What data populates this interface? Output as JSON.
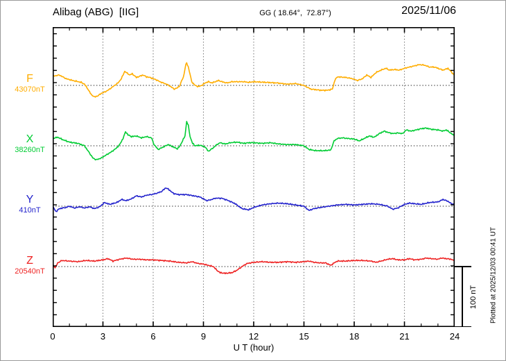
{
  "header": {
    "station": "Alibag (ABG)  [IIG]",
    "coords": "GG ( 18.64°,  72.87°)",
    "date": "2025/11/06"
  },
  "side": {
    "scale_bar_label": "100 nT",
    "plotted_at": "Plotted at 2025/12/03 00:41 UT"
  },
  "chart_data": {
    "type": "line",
    "x_label": "U T (hour)",
    "x_range": [
      0,
      24
    ],
    "x_major_ticks": [
      0,
      3,
      6,
      9,
      12,
      15,
      18,
      21,
      24
    ],
    "x_minor_tick_step_hours": 1,
    "scale_bar_nT": 100,
    "grid": "dotted vertical lines every 3 h; dotted horizontal baseline per trace",
    "y_values_are_offsets_nT_from_baseline": true,
    "series": [
      {
        "name": "F",
        "baseline_label": "43070nT",
        "baseline_nT": 43070,
        "color": "#FFAD00",
        "x": [
          0,
          0.4,
          0.8,
          1.2,
          1.7,
          1.9,
          2.1,
          2.3,
          2.5,
          2.7,
          2.9,
          3.1,
          3.3,
          3.5,
          3.7,
          3.9,
          4.1,
          4.3,
          4.45,
          4.6,
          4.75,
          5,
          5.2,
          5.4,
          5.6,
          5.8,
          6,
          6.2,
          6.4,
          6.6,
          6.8,
          7.05,
          7.25,
          7.45,
          7.6,
          7.7,
          7.8,
          7.95,
          8,
          8.1,
          8.2,
          8.3,
          8.5,
          8.7,
          8.9,
          9.1,
          9.3,
          9.5,
          9.7,
          9.9,
          10.1,
          10.4,
          10.7,
          11,
          11.4,
          11.7,
          12,
          12.7,
          13.4,
          14,
          14.5,
          15,
          15.4,
          16,
          16.4,
          16.7,
          16.85,
          17,
          17.5,
          17.9,
          18.2,
          18.5,
          18.75,
          19,
          19.3,
          19.6,
          19.9,
          20.1,
          20.4,
          20.7,
          21,
          21.3,
          21.6,
          21.9,
          22.2,
          22.5,
          22.8,
          23,
          23.3,
          23.6,
          23.8,
          24
        ],
        "offset_nT": [
          15,
          17,
          11,
          8,
          5,
          2,
          -6,
          -15,
          -19,
          -17,
          -13,
          -11,
          -8,
          -4,
          0,
          4,
          11,
          23,
          20,
          17,
          19,
          13,
          15,
          17,
          14,
          13,
          11,
          9,
          6,
          4,
          2,
          -2,
          -6,
          -4,
          0,
          8,
          13,
          34,
          37,
          30,
          18,
          6,
          0,
          -2,
          0,
          4,
          6,
          4,
          6,
          8,
          6,
          4,
          6,
          6,
          6,
          5,
          6,
          5,
          4,
          2,
          3,
          0,
          -6,
          -8,
          -8,
          -6,
          9,
          14,
          13,
          11,
          8,
          11,
          17,
          13,
          21,
          25,
          28,
          25,
          26,
          25,
          28,
          30,
          32,
          34,
          33,
          30,
          30,
          28,
          25,
          28,
          22,
          16
        ]
      },
      {
        "name": "X",
        "baseline_label": "38260nT",
        "baseline_nT": 38260,
        "color": "#00CC33",
        "x": [
          0,
          0.3,
          0.6,
          1,
          1.5,
          1.9,
          2.1,
          2.4,
          2.6,
          2.9,
          3.2,
          3.5,
          3.8,
          4,
          4.2,
          4.35,
          4.5,
          4.7,
          5,
          5.3,
          5.6,
          5.9,
          6.05,
          6.3,
          6.6,
          6.9,
          7.2,
          7.45,
          7.6,
          7.75,
          7.9,
          8,
          8.1,
          8.2,
          8.35,
          8.5,
          8.8,
          9.1,
          9.3,
          9.6,
          9.8,
          10,
          10.3,
          10.6,
          11,
          11.4,
          11.7,
          12,
          12.5,
          13,
          13.5,
          14,
          14.5,
          15,
          15.3,
          15.7,
          16.2,
          16.6,
          16.8,
          17,
          17.3,
          17.6,
          18,
          18.3,
          18.6,
          18.9,
          19.2,
          19.5,
          19.8,
          20,
          20.3,
          20.6,
          20.9,
          21.1,
          21.4,
          21.7,
          22,
          22.3,
          22.6,
          23,
          23.3,
          23.5,
          23.8,
          24
        ],
        "offset_nT": [
          12,
          14,
          10,
          6,
          4,
          0,
          -8,
          -20,
          -23,
          -20,
          -15,
          -10,
          -4,
          2,
          12,
          23,
          18,
          15,
          16,
          13,
          15,
          13,
          2,
          -6,
          -2,
          2,
          -2,
          -5,
          0,
          8,
          16,
          40,
          33,
          15,
          4,
          0,
          1,
          -2,
          -9,
          -3,
          2,
          5,
          3,
          5,
          6,
          4,
          5,
          5,
          4,
          5,
          3,
          2,
          2,
          0,
          -6,
          -8,
          -8,
          -7,
          8,
          12,
          13,
          12,
          11,
          8,
          12,
          16,
          14,
          20,
          24,
          22,
          20,
          21,
          20,
          26,
          24,
          26,
          28,
          29,
          27,
          26,
          24,
          26,
          20,
          16
        ]
      },
      {
        "name": "Y",
        "baseline_label": "410nT",
        "baseline_nT": 410,
        "color": "#2222CC",
        "x": [
          0,
          0.2,
          0.4,
          0.8,
          1,
          1.3,
          1.6,
          1.9,
          2.2,
          2.5,
          2.8,
          3.1,
          3.4,
          3.7,
          3.9,
          4.1,
          4.4,
          4.7,
          5,
          5.3,
          5.6,
          5.9,
          6.2,
          6.5,
          6.75,
          6.9,
          7.2,
          7.5,
          8,
          8.4,
          8.8,
          9.2,
          9.5,
          9.7,
          10.1,
          10.5,
          10.9,
          11.3,
          11.7,
          12,
          12.5,
          13,
          13.5,
          14,
          14.5,
          15,
          15.3,
          15.6,
          16,
          16.5,
          17,
          17.5,
          18,
          18.5,
          19,
          19.5,
          20,
          20.3,
          20.6,
          21,
          21.3,
          21.6,
          22,
          22.5,
          23,
          23.3,
          23.6,
          23.8,
          24
        ],
        "offset_nT": [
          0,
          -9,
          -4,
          -2,
          0,
          -3,
          -1,
          -3,
          -1,
          -4,
          -1,
          6,
          3,
          5,
          7,
          11,
          9,
          12,
          17,
          15,
          18,
          19,
          21,
          24,
          30,
          28,
          21,
          19,
          19,
          17,
          15,
          9,
          11,
          13,
          13,
          9,
          4,
          -4,
          -6,
          -2,
          2,
          4,
          5,
          4,
          2,
          0,
          -7,
          -4,
          -2,
          0,
          2,
          3,
          2,
          3,
          4,
          3,
          0,
          -5,
          -3,
          3,
          5,
          4,
          3,
          6,
          7,
          11,
          8,
          4,
          3
        ]
      },
      {
        "name": "Z",
        "baseline_label": "20540nT",
        "baseline_nT": 20540,
        "color": "#EE2222",
        "x": [
          0,
          0.15,
          0.3,
          0.55,
          1,
          1.5,
          2,
          2.5,
          3,
          3.3,
          3.6,
          4,
          4.4,
          4.8,
          5.2,
          5.6,
          6,
          6.5,
          7,
          7.5,
          8,
          8.3,
          8.7,
          9,
          9.3,
          9.6,
          9.8,
          10,
          10.3,
          10.7,
          11,
          11.3,
          11.6,
          12,
          12.5,
          13,
          13.5,
          14,
          14.5,
          15,
          15.3,
          15.6,
          16,
          16.3,
          16.6,
          16.8,
          17,
          17.5,
          18,
          18.5,
          19,
          19.3,
          19.6,
          20,
          20.3,
          20.6,
          21,
          21.3,
          21.6,
          22,
          22.3,
          22.6,
          23,
          23.2,
          23.5,
          23.8,
          24
        ],
        "offset_nT": [
          4,
          -2,
          6,
          10,
          9,
          8,
          10,
          9,
          11,
          13,
          9,
          12,
          14,
          12,
          12,
          11,
          11,
          10,
          9,
          7,
          6,
          8,
          5,
          4,
          2,
          0,
          -6,
          -10,
          -11,
          -10,
          -6,
          0,
          5,
          7,
          8,
          7,
          7,
          8,
          7,
          8,
          9,
          7,
          6,
          6,
          2,
          6,
          9,
          9,
          10,
          10,
          9,
          7,
          9,
          12,
          13,
          11,
          11,
          13,
          11,
          12,
          14,
          13,
          12,
          14,
          13,
          12,
          9
        ]
      }
    ]
  }
}
